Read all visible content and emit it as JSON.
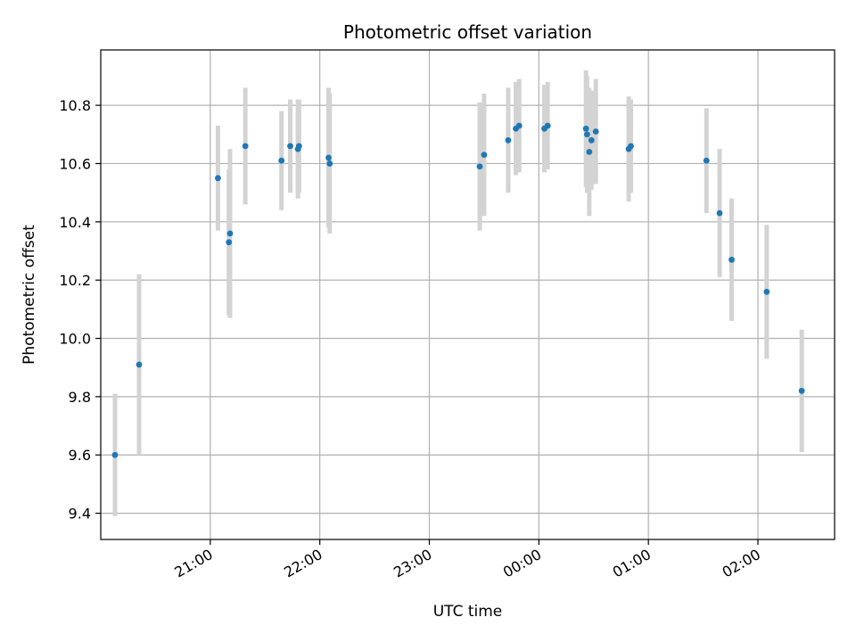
{
  "chart_data": {
    "type": "scatter",
    "title": "Photometric offset variation",
    "xlabel": "UTC time",
    "ylabel": "Photometric offset",
    "grid": true,
    "legend": "none",
    "x_unit": "hours UTC, continuing past midnight (24.0 = 00:00)",
    "xlim": [
      20.0,
      26.7
    ],
    "ylim": [
      9.31,
      10.99
    ],
    "xticks": [
      21,
      22,
      23,
      24,
      25,
      26
    ],
    "xtick_labels": [
      "21:00",
      "22:00",
      "23:00",
      "00:00",
      "01:00",
      "02:00"
    ],
    "yticks": [
      9.4,
      9.6,
      9.8,
      10.0,
      10.2,
      10.4,
      10.6,
      10.8
    ],
    "ytick_labels": [
      "9.4",
      "9.6",
      "9.8",
      "10.0",
      "10.2",
      "10.4",
      "10.6",
      "10.8"
    ],
    "colors": {
      "points": "#1f77b4",
      "errorbars": "#d3d3d3",
      "grid": "#b0b0b0"
    },
    "series": [
      {
        "x": [
          20.13,
          20.35,
          21.07,
          21.17,
          21.18,
          21.32,
          21.65,
          21.73,
          21.8,
          21.81,
          22.08,
          22.09,
          23.46,
          23.5,
          23.72,
          23.79,
          23.82,
          24.05,
          24.08,
          24.43,
          24.44,
          24.46,
          24.48,
          24.52,
          24.82,
          24.84,
          25.53,
          25.65,
          25.76,
          26.08,
          26.4
        ],
        "y": [
          9.6,
          9.91,
          10.55,
          10.33,
          10.36,
          10.66,
          10.61,
          10.66,
          10.65,
          10.66,
          10.62,
          10.6,
          10.59,
          10.63,
          10.68,
          10.72,
          10.73,
          10.72,
          10.73,
          10.72,
          10.7,
          10.64,
          10.68,
          10.71,
          10.65,
          10.66,
          10.61,
          10.43,
          10.27,
          10.16,
          9.82
        ],
        "yerr": [
          0.21,
          0.31,
          0.18,
          0.25,
          0.29,
          0.2,
          0.17,
          0.16,
          0.17,
          0.16,
          0.24,
          0.24,
          0.22,
          0.21,
          0.18,
          0.16,
          0.16,
          0.15,
          0.15,
          0.2,
          0.2,
          0.22,
          0.17,
          0.18,
          0.18,
          0.16,
          0.18,
          0.22,
          0.21,
          0.23,
          0.21
        ]
      }
    ]
  }
}
